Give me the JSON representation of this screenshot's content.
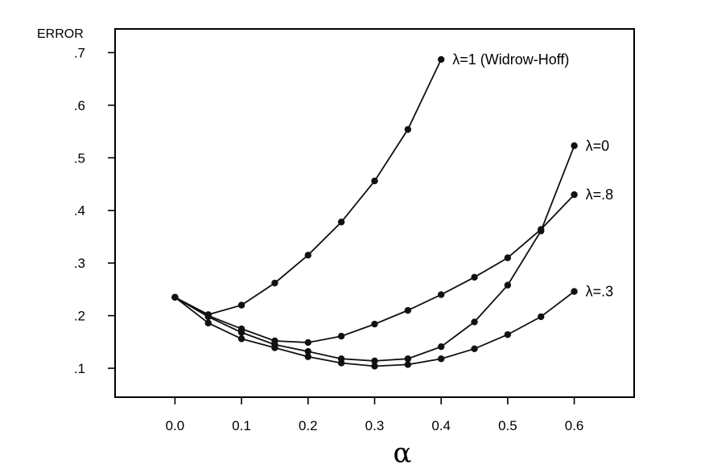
{
  "chart_data": {
    "type": "line",
    "title": "",
    "xlabel": "α",
    "ylabel": "ERROR",
    "xlim": [
      -0.09,
      0.69
    ],
    "ylim": [
      0.045,
      0.745
    ],
    "x_ticks": [
      0.0,
      0.1,
      0.2,
      0.3,
      0.4,
      0.5,
      0.6
    ],
    "x_tick_labels": [
      "0.0",
      "0.1",
      "0.2",
      "0.3",
      "0.4",
      "0.5",
      "0.6"
    ],
    "y_ticks": [
      0.1,
      0.2,
      0.3,
      0.4,
      0.5,
      0.6,
      0.7
    ],
    "y_tick_labels": [
      ".1",
      ".2",
      ".3",
      ".4",
      ".5",
      ".6",
      ".7"
    ],
    "grid": false,
    "legend": "none",
    "series": [
      {
        "name": "λ=1 (Widrow-Hoff)",
        "x": [
          0.0,
          0.05,
          0.1,
          0.15,
          0.2,
          0.25,
          0.3,
          0.35,
          0.4
        ],
        "y": [
          0.235,
          0.202,
          0.22,
          0.262,
          0.315,
          0.378,
          0.456,
          0.554,
          0.687
        ]
      },
      {
        "name": "λ=0",
        "x": [
          0.0,
          0.05,
          0.1,
          0.15,
          0.2,
          0.25,
          0.3,
          0.35,
          0.4,
          0.45,
          0.5,
          0.55,
          0.6
        ],
        "y": [
          0.235,
          0.198,
          0.168,
          0.145,
          0.132,
          0.118,
          0.114,
          0.118,
          0.141,
          0.188,
          0.258,
          0.361,
          0.523
        ]
      },
      {
        "name": "λ=.8",
        "x": [
          0.0,
          0.05,
          0.1,
          0.15,
          0.2,
          0.25,
          0.3,
          0.35,
          0.4,
          0.45,
          0.5,
          0.55,
          0.6
        ],
        "y": [
          0.235,
          0.2,
          0.175,
          0.152,
          0.149,
          0.161,
          0.184,
          0.21,
          0.24,
          0.273,
          0.31,
          0.364,
          0.43
        ]
      },
      {
        "name": "λ=.3",
        "x": [
          0.0,
          0.05,
          0.1,
          0.15,
          0.2,
          0.25,
          0.3,
          0.35,
          0.4,
          0.45,
          0.5,
          0.55,
          0.6
        ],
        "y": [
          0.235,
          0.186,
          0.156,
          0.139,
          0.122,
          0.11,
          0.104,
          0.107,
          0.118,
          0.137,
          0.164,
          0.198,
          0.246
        ]
      }
    ]
  }
}
